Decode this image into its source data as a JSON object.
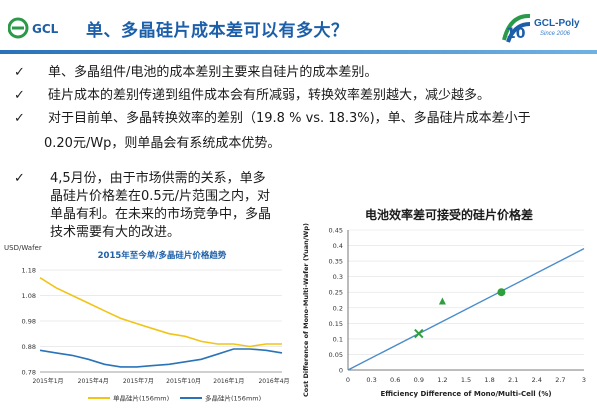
{
  "header": {
    "logo_left_text": "GCL",
    "title": "单、多晶硅片成本差可以有多大？",
    "logo_right_text": "GCL-Poly",
    "logo_right_sub": "Since 2006"
  },
  "bullets": [
    {
      "mark": "✓",
      "text": "单、多晶组件/电池的成本差别主要来自硅片的成本差别。"
    },
    {
      "mark": "✓",
      "text": "硅片成本的差别传递到组件成本会有所减弱，转换效率差别越大，减少越多。"
    },
    {
      "mark": "✓",
      "text": "对于目前单、多晶转换效率的差别（19.8 % vs. 18.3%)，单、多晶硅片成本差小于",
      "text2": "0.20元/Wp，则单晶会有系统成本优势。"
    }
  ],
  "sub_bullet": {
    "mark": "✓",
    "lines": [
      "4,5月份，由于市场供需的关系，单多",
      "晶硅片价格差在0.5元/片范围之内，对",
      "单晶有利。在未来的市场竞争中，多晶",
      "技术需要有大的改进。"
    ]
  },
  "colors": {
    "title_blue": "#1c5fa8",
    "mono_line": "#f0c419",
    "multi_line": "#2a73b8",
    "right_line": "#4a8cc9",
    "triangle": "#2e9e3e",
    "dot": "#2e9e3e",
    "cross": "#2e9e3e"
  },
  "chart_data": [
    {
      "type": "line",
      "title": "2015年至今单/多晶硅片价格趋势",
      "ylabel": "USD/Wafer",
      "ylim": [
        0.78,
        1.18
      ],
      "y_ticks": [
        "1.18",
        "1.08",
        "0.98",
        "0.88",
        "0.78"
      ],
      "x_ticks": [
        "2015年1月",
        "2015年4月",
        "2015年7月",
        "2015年10月",
        "2016年1月",
        "2016年4月"
      ],
      "series": [
        {
          "name": "单晶硅片(156mm)",
          "color": "#f0c419",
          "values": [
            1.15,
            1.11,
            1.08,
            1.05,
            1.02,
            0.99,
            0.97,
            0.95,
            0.93,
            0.92,
            0.9,
            0.89,
            0.89,
            0.88,
            0.89,
            0.89
          ]
        },
        {
          "name": "多晶硅片(156mm)",
          "color": "#2a73b8",
          "values": [
            0.865,
            0.855,
            0.845,
            0.83,
            0.81,
            0.8,
            0.8,
            0.805,
            0.81,
            0.82,
            0.83,
            0.85,
            0.87,
            0.87,
            0.865,
            0.855
          ]
        }
      ]
    },
    {
      "type": "scatter",
      "title": "电池效率差可接受的硅片价格差",
      "xlabel": "Efficiency Difference of Mono/Multi-Cell (%)",
      "ylabel": "Cost Difference of Mono-Multi-Wafer (Yuan/Wp)",
      "xlim": [
        0,
        3
      ],
      "ylim": [
        0,
        0.45
      ],
      "x_ticks": [
        "0",
        "0.3",
        "0.6",
        "0.9",
        "1.2",
        "1.5",
        "1.8",
        "2.1",
        "2.4",
        "2.7",
        "3"
      ],
      "y_ticks": [
        "0",
        "0.05",
        "0.1",
        "0.15",
        "0.2",
        "0.25",
        "0.3",
        "0.35",
        "0.4",
        "0.45"
      ],
      "line": {
        "x": [
          0,
          3
        ],
        "y": [
          0,
          0.39
        ]
      },
      "points": [
        {
          "x": 0.9,
          "y": 0.117,
          "marker": "cross"
        },
        {
          "x": 1.2,
          "y": 0.22,
          "marker": "triangle"
        },
        {
          "x": 1.95,
          "y": 0.25,
          "marker": "circle"
        }
      ]
    }
  ]
}
